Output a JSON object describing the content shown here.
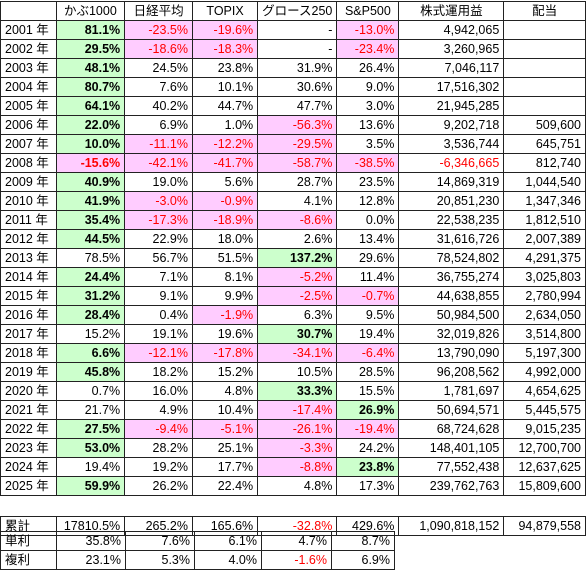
{
  "headers": [
    "かぶ1000",
    "日経平均",
    "TOPIX",
    "グロース250",
    "S&P500",
    "株式運用益",
    "配当"
  ],
  "rows": [
    {
      "year": "2001 年",
      "kabu": "81.1%",
      "nikkei": "-23.5%",
      "topix": "-19.6%",
      "growth": "-",
      "sp": "-13.0%",
      "gain": "4,942,065",
      "div": ""
    },
    {
      "year": "2002 年",
      "kabu": "29.5%",
      "nikkei": "-18.6%",
      "topix": "-18.3%",
      "growth": "-",
      "sp": "-23.4%",
      "gain": "3,260,965",
      "div": ""
    },
    {
      "year": "2003 年",
      "kabu": "48.1%",
      "nikkei": "24.5%",
      "topix": "23.8%",
      "growth": "31.9%",
      "sp": "26.4%",
      "gain": "7,046,117",
      "div": ""
    },
    {
      "year": "2004 年",
      "kabu": "80.7%",
      "nikkei": "7.6%",
      "topix": "10.1%",
      "growth": "30.6%",
      "sp": "9.0%",
      "gain": "17,516,302",
      "div": ""
    },
    {
      "year": "2005 年",
      "kabu": "64.1%",
      "nikkei": "40.2%",
      "topix": "44.7%",
      "growth": "47.7%",
      "sp": "3.0%",
      "gain": "21,945,285",
      "div": ""
    },
    {
      "year": "2006 年",
      "kabu": "22.0%",
      "nikkei": "6.9%",
      "topix": "1.0%",
      "growth": "-56.3%",
      "sp": "13.6%",
      "gain": "9,202,718",
      "div": "509,600"
    },
    {
      "year": "2007 年",
      "kabu": "10.0%",
      "nikkei": "-11.1%",
      "topix": "-12.2%",
      "growth": "-29.5%",
      "sp": "3.5%",
      "gain": "3,536,744",
      "div": "645,751"
    },
    {
      "year": "2008 年",
      "kabu": "-15.6%",
      "nikkei": "-42.1%",
      "topix": "-41.7%",
      "growth": "-58.7%",
      "sp": "-38.5%",
      "gain": "-6,346,665",
      "div": "812,740"
    },
    {
      "year": "2009 年",
      "kabu": "40.9%",
      "nikkei": "19.0%",
      "topix": "5.6%",
      "growth": "28.7%",
      "sp": "23.5%",
      "gain": "14,869,319",
      "div": "1,044,540"
    },
    {
      "year": "2010 年",
      "kabu": "41.9%",
      "nikkei": "-3.0%",
      "topix": "-0.9%",
      "growth": "4.1%",
      "sp": "12.8%",
      "gain": "20,851,230",
      "div": "1,347,346"
    },
    {
      "year": "2011 年",
      "kabu": "35.4%",
      "nikkei": "-17.3%",
      "topix": "-18.9%",
      "growth": "-8.6%",
      "sp": "0.0%",
      "gain": "22,538,235",
      "div": "1,812,510"
    },
    {
      "year": "2012 年",
      "kabu": "44.5%",
      "nikkei": "22.9%",
      "topix": "18.0%",
      "growth": "2.6%",
      "sp": "13.4%",
      "gain": "31,616,726",
      "div": "2,007,389"
    },
    {
      "year": "2013 年",
      "kabu": "78.5%",
      "nikkei": "56.7%",
      "topix": "51.5%",
      "growth": "137.2%",
      "sp": "29.6%",
      "gain": "78,524,802",
      "div": "4,291,375"
    },
    {
      "year": "2014 年",
      "kabu": "24.4%",
      "nikkei": "7.1%",
      "topix": "8.1%",
      "growth": "-5.2%",
      "sp": "11.4%",
      "gain": "36,755,274",
      "div": "3,025,803"
    },
    {
      "year": "2015 年",
      "kabu": "31.2%",
      "nikkei": "9.1%",
      "topix": "9.9%",
      "growth": "-2.5%",
      "sp": "-0.7%",
      "gain": "44,638,855",
      "div": "2,780,994"
    },
    {
      "year": "2016 年",
      "kabu": "28.4%",
      "nikkei": "0.4%",
      "topix": "-1.9%",
      "growth": "6.3%",
      "sp": "9.5%",
      "gain": "50,984,500",
      "div": "2,634,050"
    },
    {
      "year": "2017 年",
      "kabu": "15.2%",
      "nikkei": "19.1%",
      "topix": "19.6%",
      "growth": "30.7%",
      "sp": "19.4%",
      "gain": "32,019,826",
      "div": "3,514,800"
    },
    {
      "year": "2018 年",
      "kabu": "6.6%",
      "nikkei": "-12.1%",
      "topix": "-17.8%",
      "growth": "-34.1%",
      "sp": "-6.4%",
      "gain": "13,790,090",
      "div": "5,197,300"
    },
    {
      "year": "2019 年",
      "kabu": "45.8%",
      "nikkei": "18.2%",
      "topix": "15.2%",
      "growth": "10.5%",
      "sp": "28.5%",
      "gain": "96,208,562",
      "div": "4,992,000"
    },
    {
      "year": "2020 年",
      "kabu": "0.7%",
      "nikkei": "16.0%",
      "topix": "4.8%",
      "growth": "33.3%",
      "sp": "15.5%",
      "gain": "1,781,697",
      "div": "4,654,625"
    },
    {
      "year": "2021 年",
      "kabu": "21.7%",
      "nikkei": "4.9%",
      "topix": "10.4%",
      "growth": "-17.4%",
      "sp": "26.9%",
      "gain": "50,694,571",
      "div": "5,445,575"
    },
    {
      "year": "2022 年",
      "kabu": "27.5%",
      "nikkei": "-9.4%",
      "topix": "-5.1%",
      "growth": "-26.1%",
      "sp": "-19.4%",
      "gain": "68,724,628",
      "div": "9,015,235"
    },
    {
      "year": "2023 年",
      "kabu": "53.0%",
      "nikkei": "28.2%",
      "topix": "25.1%",
      "growth": "-3.3%",
      "sp": "24.2%",
      "gain": "148,401,105",
      "div": "12,700,700"
    },
    {
      "year": "2024 年",
      "kabu": "19.4%",
      "nikkei": "19.2%",
      "topix": "17.7%",
      "growth": "-8.8%",
      "sp": "23.8%",
      "gain": "77,552,438",
      "div": "12,637,625"
    },
    {
      "year": "2025 年",
      "kabu": "59.9%",
      "nikkei": "26.2%",
      "topix": "22.4%",
      "growth": "4.8%",
      "sp": "17.3%",
      "gain": "239,762,763",
      "div": "15,809,600"
    }
  ],
  "totals": {
    "label": "累計",
    "kabu": "17810.5%",
    "nikkei": "265.2%",
    "topix": "165.6%",
    "growth": "-32.8%",
    "sp": "429.6%",
    "gain": "1,090,818,152",
    "div": "94,879,558"
  },
  "simple": {
    "label": "単利",
    "kabu": "35.8%",
    "nikkei": "7.6%",
    "topix": "6.1%",
    "growth": "4.7%",
    "sp": "8.7%"
  },
  "compound": {
    "label": "複利",
    "kabu": "23.1%",
    "nikkei": "5.3%",
    "topix": "4.0%",
    "growth": "-1.6%",
    "sp": "6.9%"
  },
  "styles": {
    "green_fill": "#ccffcc",
    "pink_fill": "#ffccff",
    "negative_text": "#ff0000"
  },
  "cell_flags": {
    "kabu_plain_rows": [
      "2013 年",
      "2017 年",
      "2020 年",
      "2021 年",
      "2024 年"
    ],
    "kabu_negative_highlight": [
      "2008 年"
    ],
    "green_cells": [
      {
        "year": "2013 年",
        "col": "growth"
      },
      {
        "year": "2017 年",
        "col": "growth"
      },
      {
        "year": "2020 年",
        "col": "growth"
      },
      {
        "year": "2021 年",
        "col": "sp"
      },
      {
        "year": "2024 年",
        "col": "sp"
      }
    ]
  }
}
